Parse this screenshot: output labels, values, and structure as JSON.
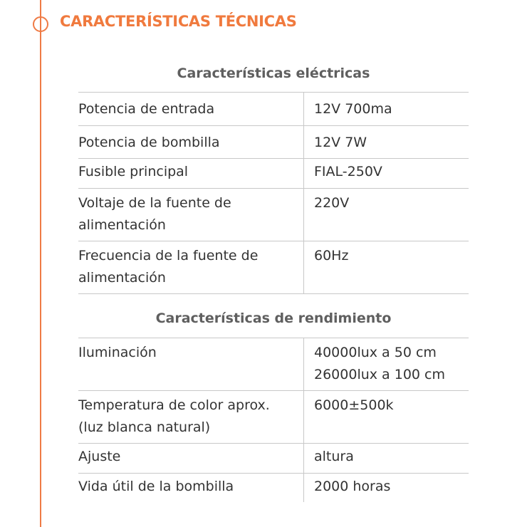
{
  "title": "CARACTERÍSTICAS TÉCNICAS",
  "sections": [
    {
      "heading": "Características eléctricas",
      "rows": [
        {
          "label": "Potencia de entrada",
          "value": "12V 700ma"
        },
        {
          "label": "Potencia de bombilla",
          "value": "12V 7W"
        },
        {
          "label": "Fusible principal",
          "value": "FIAL-250V"
        },
        {
          "label": "Voltaje de la fuente de alimentación",
          "value": "220V"
        },
        {
          "label": "Frecuencia de la fuente de alimentación",
          "value": "60Hz"
        }
      ]
    },
    {
      "heading": "Características de rendimiento",
      "rows": [
        {
          "label": "Iluminación",
          "value": "40000lux a 50 cm 26000lux a 100 cm"
        },
        {
          "label": "Temperatura de color aprox. (luz blanca natural)",
          "value": "6000±500k"
        },
        {
          "label": "Ajuste",
          "value": "altura"
        },
        {
          "label": "Vida útil de la bombilla",
          "value": "2000 horas"
        }
      ]
    }
  ],
  "colors": {
    "accent": "#f07a3e",
    "heading": "#5f5f5f",
    "text": "#333333"
  }
}
